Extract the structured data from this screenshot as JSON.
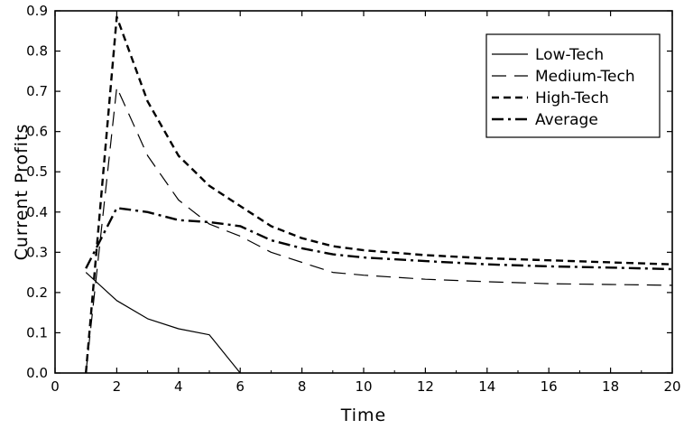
{
  "chart_data": {
    "type": "line",
    "title": "",
    "xlabel": "Time",
    "ylabel": "Current Profits",
    "xlim": [
      0,
      20
    ],
    "ylim": [
      0,
      0.9
    ],
    "xticks": [
      "0",
      "2",
      "4",
      "6",
      "8",
      "10",
      "12",
      "14",
      "16",
      "18",
      "20"
    ],
    "yticks": [
      "0.0",
      "0.1",
      "0.2",
      "0.3",
      "0.4",
      "0.5",
      "0.6",
      "0.7",
      "0.8",
      "0.9"
    ],
    "grid": false,
    "legend_position": "top-right",
    "series": [
      {
        "name": "Low-Tech",
        "style": "solid",
        "color": "#000000",
        "points": [
          [
            1,
            0.25
          ],
          [
            2,
            0.18
          ],
          [
            3,
            0.135
          ],
          [
            4,
            0.11
          ],
          [
            5,
            0.095
          ],
          [
            6,
            0.0
          ]
        ]
      },
      {
        "name": "Medium-Tech",
        "style": "long-dash",
        "color": "#000000",
        "points": [
          [
            1,
            0.0
          ],
          [
            2,
            0.71
          ],
          [
            3,
            0.54
          ],
          [
            4,
            0.43
          ],
          [
            5,
            0.37
          ],
          [
            6,
            0.34
          ],
          [
            7,
            0.3
          ],
          [
            8,
            0.275
          ],
          [
            9,
            0.25
          ],
          [
            10,
            0.243
          ],
          [
            12,
            0.233
          ],
          [
            14,
            0.227
          ],
          [
            16,
            0.222
          ],
          [
            18,
            0.22
          ],
          [
            20,
            0.218
          ]
        ]
      },
      {
        "name": "High-Tech",
        "style": "short-dash",
        "color": "#000000",
        "points": [
          [
            1,
            0.0
          ],
          [
            2,
            0.885
          ],
          [
            3,
            0.675
          ],
          [
            4,
            0.54
          ],
          [
            5,
            0.465
          ],
          [
            6,
            0.415
          ],
          [
            7,
            0.365
          ],
          [
            8,
            0.335
          ],
          [
            9,
            0.315
          ],
          [
            10,
            0.305
          ],
          [
            12,
            0.293
          ],
          [
            14,
            0.285
          ],
          [
            16,
            0.28
          ],
          [
            18,
            0.275
          ],
          [
            20,
            0.27
          ]
        ]
      },
      {
        "name": "Average",
        "style": "dash-dot",
        "color": "#000000",
        "points": [
          [
            1,
            0.26
          ],
          [
            2,
            0.41
          ],
          [
            3,
            0.4
          ],
          [
            4,
            0.38
          ],
          [
            5,
            0.375
          ],
          [
            6,
            0.365
          ],
          [
            7,
            0.33
          ],
          [
            8,
            0.31
          ],
          [
            9,
            0.295
          ],
          [
            10,
            0.287
          ],
          [
            12,
            0.278
          ],
          [
            14,
            0.27
          ],
          [
            16,
            0.265
          ],
          [
            18,
            0.262
          ],
          [
            20,
            0.258
          ]
        ]
      }
    ]
  }
}
